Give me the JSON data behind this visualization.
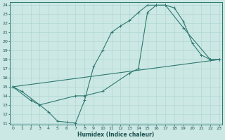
{
  "xlabel": "Humidex (Indice chaleur)",
  "bg_color": "#cce8e4",
  "grid_color": "#b0d8d4",
  "line_color": "#2d7870",
  "xlim": [
    0,
    23
  ],
  "ylim": [
    11,
    24
  ],
  "yticks": [
    11,
    12,
    13,
    14,
    15,
    16,
    17,
    18,
    19,
    20,
    21,
    22,
    23,
    24
  ],
  "xticks": [
    0,
    1,
    2,
    3,
    4,
    5,
    6,
    7,
    8,
    9,
    10,
    11,
    12,
    13,
    14,
    15,
    16,
    17,
    18,
    19,
    20,
    21,
    22,
    23
  ],
  "line1_x": [
    0,
    1,
    3,
    4,
    5,
    6,
    7,
    8,
    9,
    10,
    11,
    12,
    13,
    14,
    15,
    16,
    17,
    18,
    19,
    20,
    21,
    22,
    23
  ],
  "line1_y": [
    15,
    14.5,
    13,
    12.2,
    11.2,
    11.1,
    11,
    13.5,
    17.2,
    19,
    21,
    21.7,
    22.3,
    23.2,
    24,
    24,
    24,
    23.7,
    22.2,
    19.8,
    18.5,
    18,
    18
  ],
  "line2_x": [
    0,
    2,
    3,
    7,
    8,
    10,
    13,
    14,
    15,
    16,
    17,
    19,
    22,
    23
  ],
  "line2_y": [
    15,
    13.5,
    13,
    14,
    14,
    14.5,
    16.5,
    17,
    23.2,
    24,
    24,
    21.5,
    18,
    18
  ],
  "line3_x": [
    0,
    23
  ],
  "line3_y": [
    15,
    18
  ]
}
